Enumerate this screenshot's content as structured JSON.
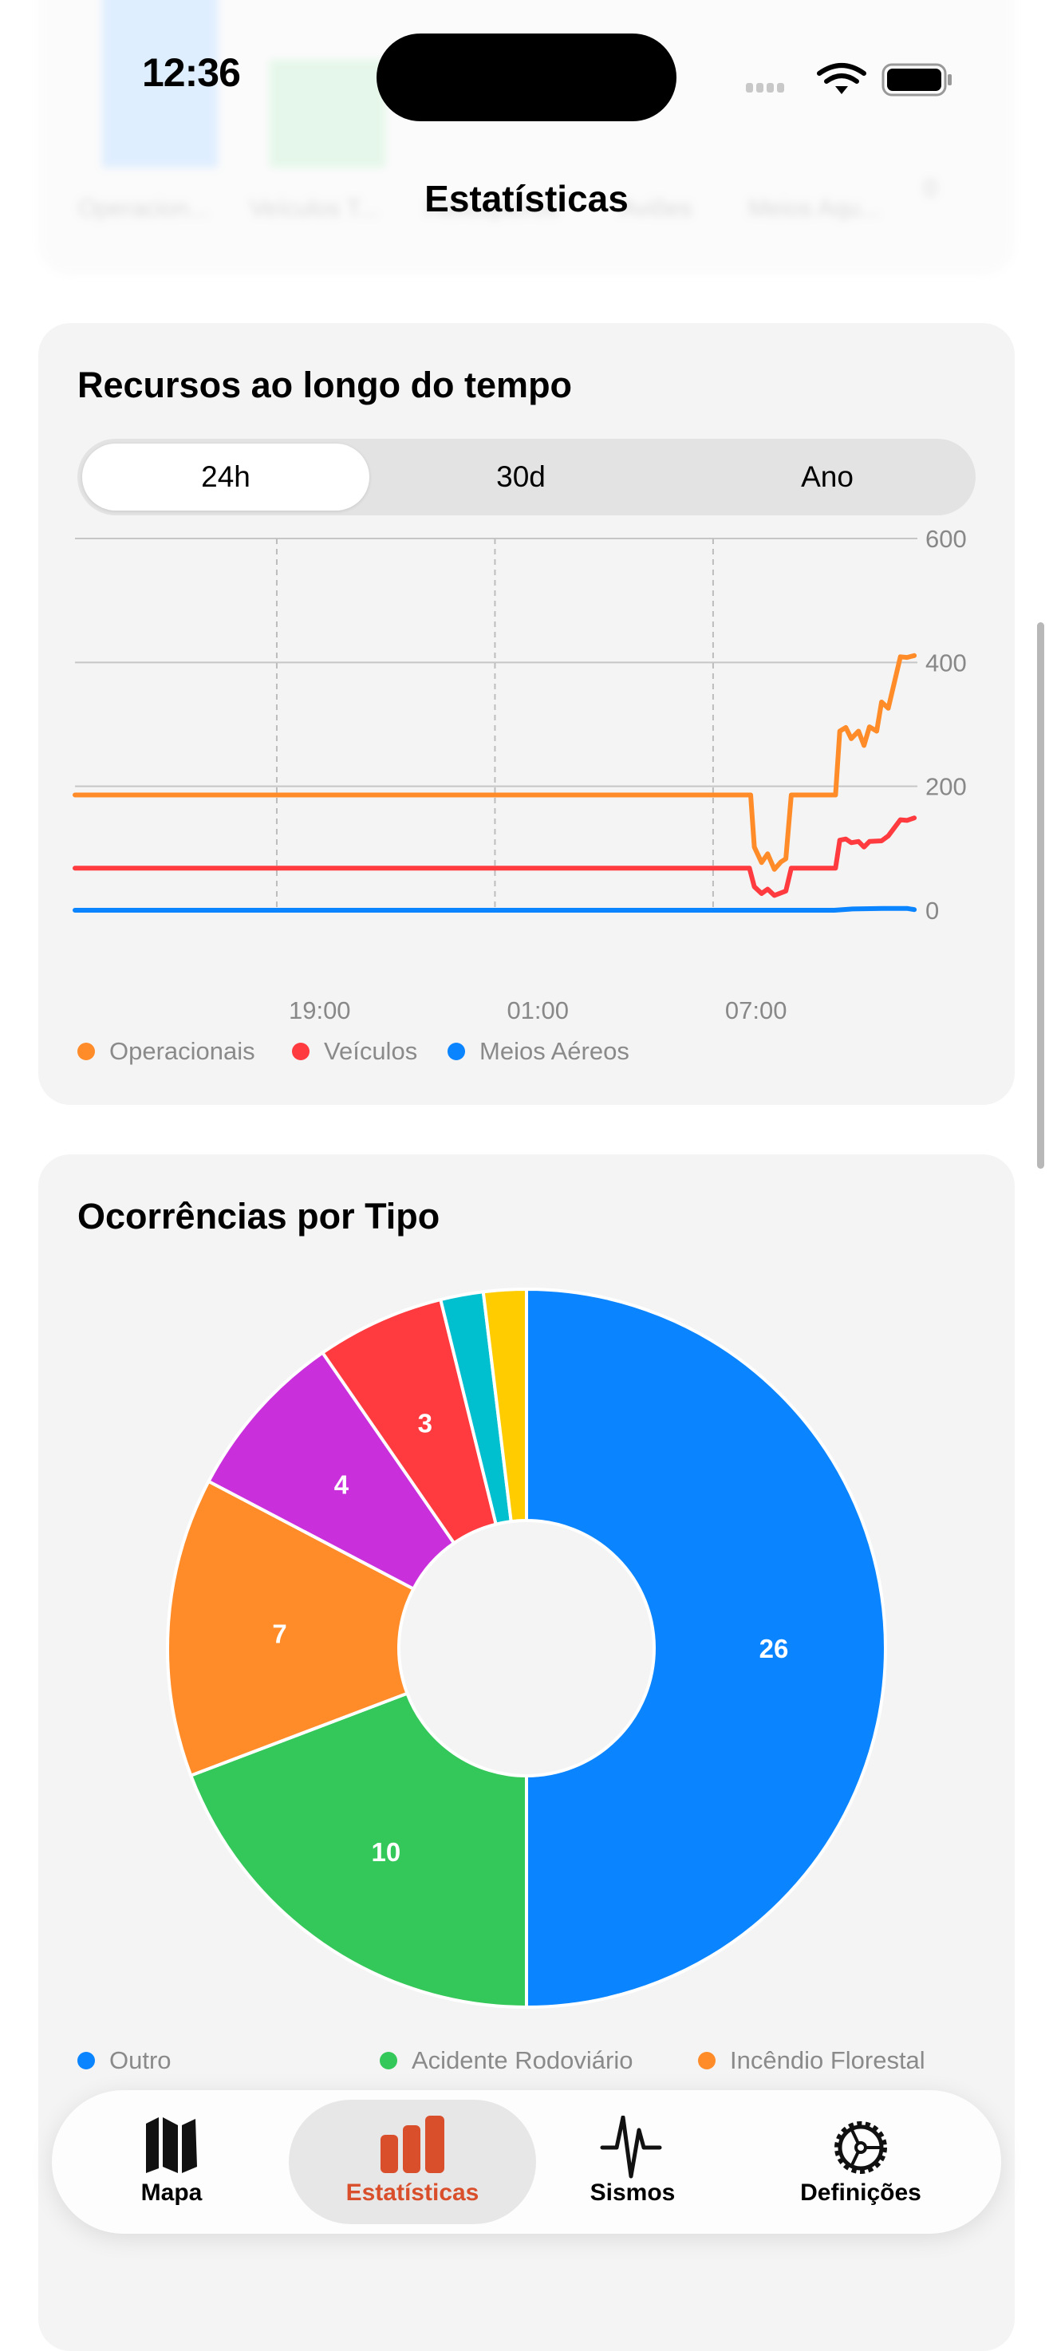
{
  "status_bar": {
    "time": "12:36"
  },
  "nav": {
    "title": "Estatísticas"
  },
  "top_card": {
    "bar_labels": [
      "Operacion...",
      "Veículos T...",
      "Helicópteros",
      "Aviões",
      "Meios Aqu..."
    ],
    "axis_zero": "0"
  },
  "resources_card": {
    "title": "Recursos ao longo do tempo",
    "segments": [
      "24h",
      "30d",
      "Ano"
    ],
    "selected_segment": "24h"
  },
  "chart_data": [
    {
      "type": "line",
      "title": "Recursos ao longo do tempo",
      "xlim": [
        "13:27",
        "12:33"
      ],
      "ylim": [
        0,
        600
      ],
      "y_ticks": [
        "600",
        "400",
        "200",
        "0"
      ],
      "x_ticks": [
        "19:00",
        "01:00",
        "07:00"
      ],
      "grid": true,
      "legend": "bottom",
      "series": [
        {
          "name": "Operacionais",
          "color": "#ff8c28",
          "points": [
            [
              "13:27",
              186
            ],
            [
              "08:02",
              186
            ],
            [
              "08:08",
              102
            ],
            [
              "08:20",
              77
            ],
            [
              "08:30",
              91
            ],
            [
              "08:41",
              66
            ],
            [
              "08:52",
              78
            ],
            [
              "09:00",
              83
            ],
            [
              "09:09",
              186
            ],
            [
              "10:22",
              186
            ],
            [
              "10:29",
              289
            ],
            [
              "10:39",
              295
            ],
            [
              "10:48",
              277
            ],
            [
              "11:00",
              289
            ],
            [
              "11:09",
              266
            ],
            [
              "11:18",
              296
            ],
            [
              "11:30",
              289
            ],
            [
              "11:38",
              336
            ],
            [
              "11:49",
              326
            ],
            [
              "12:09",
              409
            ],
            [
              "12:20",
              408
            ],
            [
              "12:32",
              411
            ]
          ]
        },
        {
          "name": "Veículos",
          "color": "#ff3b3f",
          "points": [
            [
              "13:27",
              68
            ],
            [
              "08:00",
              68
            ],
            [
              "08:08",
              38
            ],
            [
              "08:20",
              27
            ],
            [
              "08:30",
              34
            ],
            [
              "08:41",
              24
            ],
            [
              "09:00",
              31
            ],
            [
              "09:09",
              68
            ],
            [
              "10:22",
              68
            ],
            [
              "10:29",
              113
            ],
            [
              "10:39",
              115
            ],
            [
              "10:48",
              109
            ],
            [
              "11:00",
              111
            ],
            [
              "11:09",
              102
            ],
            [
              "11:18",
              111
            ],
            [
              "11:38",
              112
            ],
            [
              "11:49",
              120
            ],
            [
              "12:09",
              146
            ],
            [
              "12:20",
              145
            ],
            [
              "12:32",
              149
            ]
          ]
        },
        {
          "name": "Meios Aéreos",
          "color": "#0a84ff",
          "points": [
            [
              "13:27",
              0
            ],
            [
              "10:20",
              0
            ],
            [
              "10:50",
              2
            ],
            [
              "11:40",
              3
            ],
            [
              "12:20",
              3
            ],
            [
              "12:32",
              1
            ]
          ]
        }
      ]
    },
    {
      "type": "pie",
      "title": "Ocorrências por Tipo",
      "donut": true,
      "legend": "bottom",
      "slices": [
        {
          "name": "Outro",
          "value": 26,
          "color": "#0a84ff"
        },
        {
          "name": "Acidente Rodoviário",
          "value": 10,
          "color": "#34c759"
        },
        {
          "name": "Incêndio Florestal",
          "value": 7,
          "color": "#ff8c28"
        },
        {
          "value": 4,
          "color": "#c930dc"
        },
        {
          "value": 3,
          "color": "#ff3b3f"
        },
        {
          "value": 1,
          "color": "#00c0d0"
        },
        {
          "value": 1,
          "color": "#ffcc00"
        }
      ]
    }
  ],
  "tabbar": {
    "items": [
      {
        "label": "Mapa",
        "icon": "map-icon"
      },
      {
        "label": "Estatísticas",
        "icon": "bar-chart-icon"
      },
      {
        "label": "Sismos",
        "icon": "waveform-icon"
      },
      {
        "label": "Definições",
        "icon": "gear-icon"
      }
    ],
    "selected": "Estatísticas",
    "accent": "#d94f2b"
  }
}
